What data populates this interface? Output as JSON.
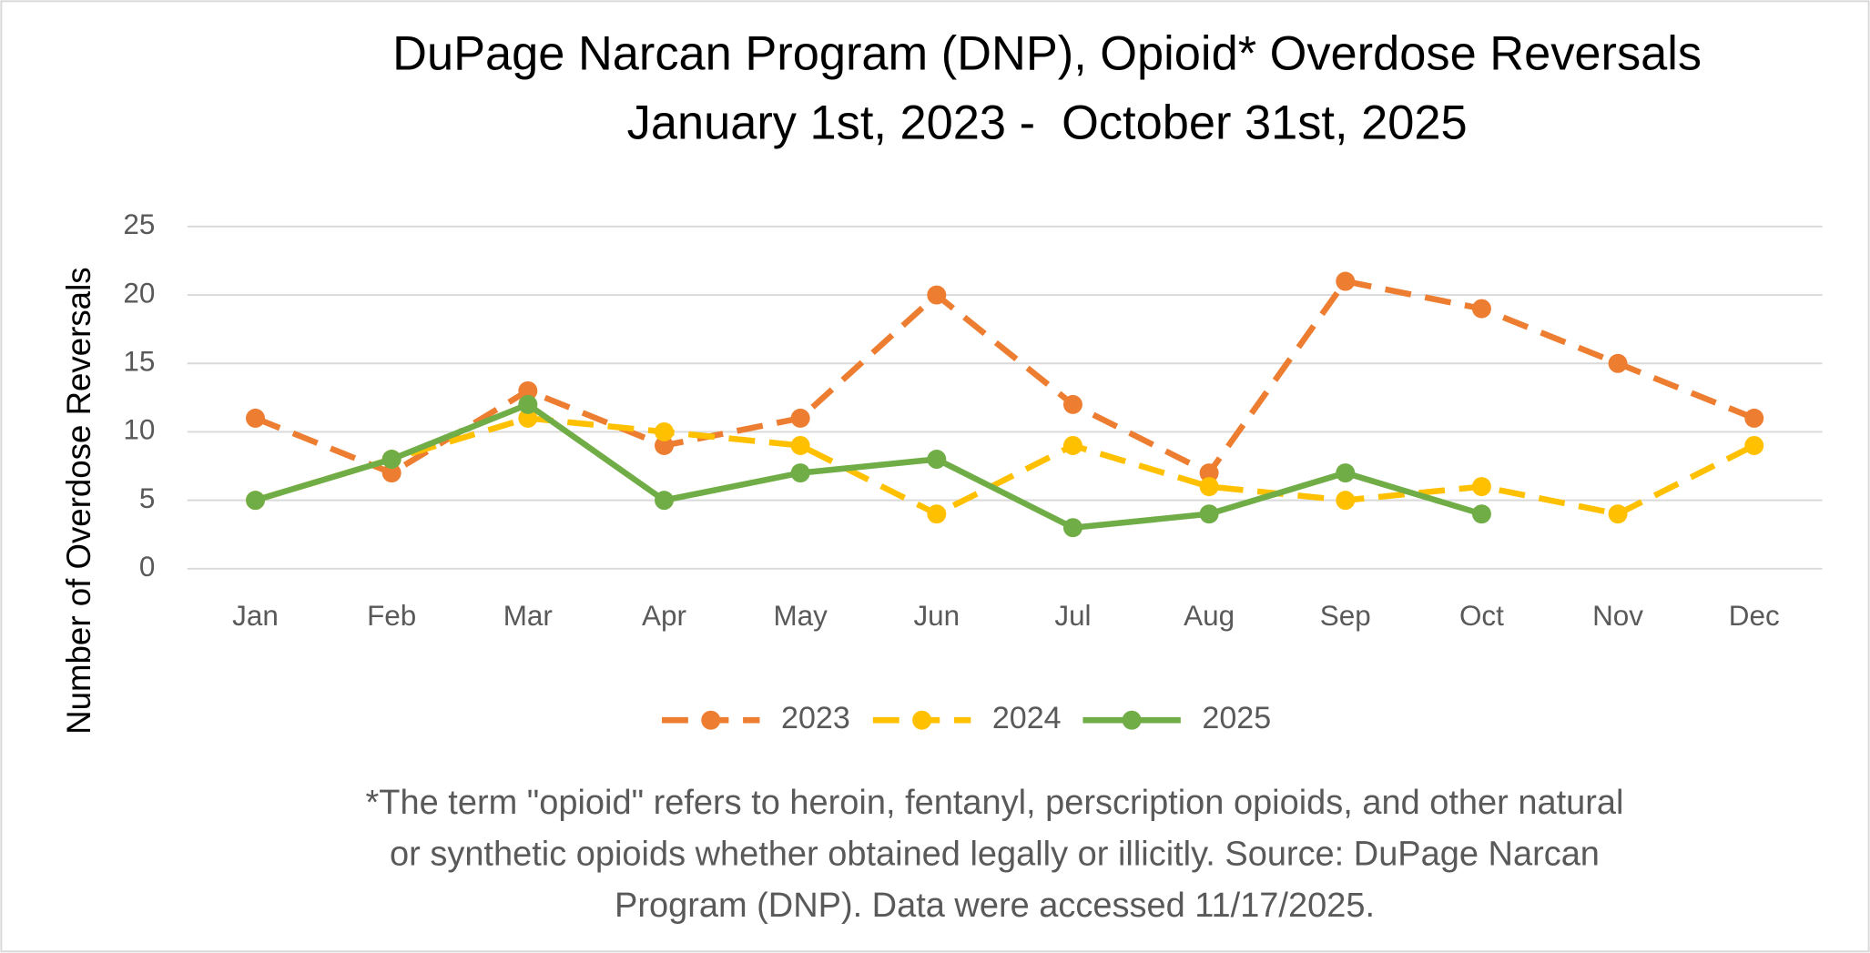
{
  "chart_data": {
    "type": "line",
    "title": "DuPage Narcan Program (DNP), Opioid* Overdose Reversals",
    "subtitle": "January 1st, 2023 -  October 31st, 2025",
    "y_label": "Number of Overdose Reversals",
    "categories": [
      "Jan",
      "Feb",
      "Mar",
      "Apr",
      "May",
      "Jun",
      "Jul",
      "Aug",
      "Sep",
      "Oct",
      "Nov",
      "Dec"
    ],
    "series": [
      {
        "name": "2023",
        "color": "#ed7d31",
        "dashed": true,
        "values": [
          11,
          7,
          13,
          9,
          11,
          20,
          12,
          7,
          21,
          19,
          15,
          11
        ]
      },
      {
        "name": "2024",
        "color": "#ffc000",
        "dashed": true,
        "values": [
          5,
          8,
          11,
          10,
          9,
          4,
          9,
          6,
          5,
          6,
          4,
          9
        ]
      },
      {
        "name": "2025",
        "color": "#70ad47",
        "dashed": false,
        "values": [
          5,
          8,
          12,
          5,
          7,
          8,
          3,
          4,
          7,
          4,
          null,
          null
        ]
      }
    ],
    "ylim": [
      0,
      25
    ],
    "yticks": [
      0,
      5,
      10,
      15,
      20,
      25
    ],
    "grid": true,
    "legend": "bottom",
    "footnote": [
      "*The term \"opioid\" refers to heroin, fentanyl, perscription opioids, and other natural",
      "or synthetic opioids whether obtained legally or illicitly. Source: DuPage Narcan",
      "Program (DNP). Data were accessed 11/17/2025."
    ]
  }
}
